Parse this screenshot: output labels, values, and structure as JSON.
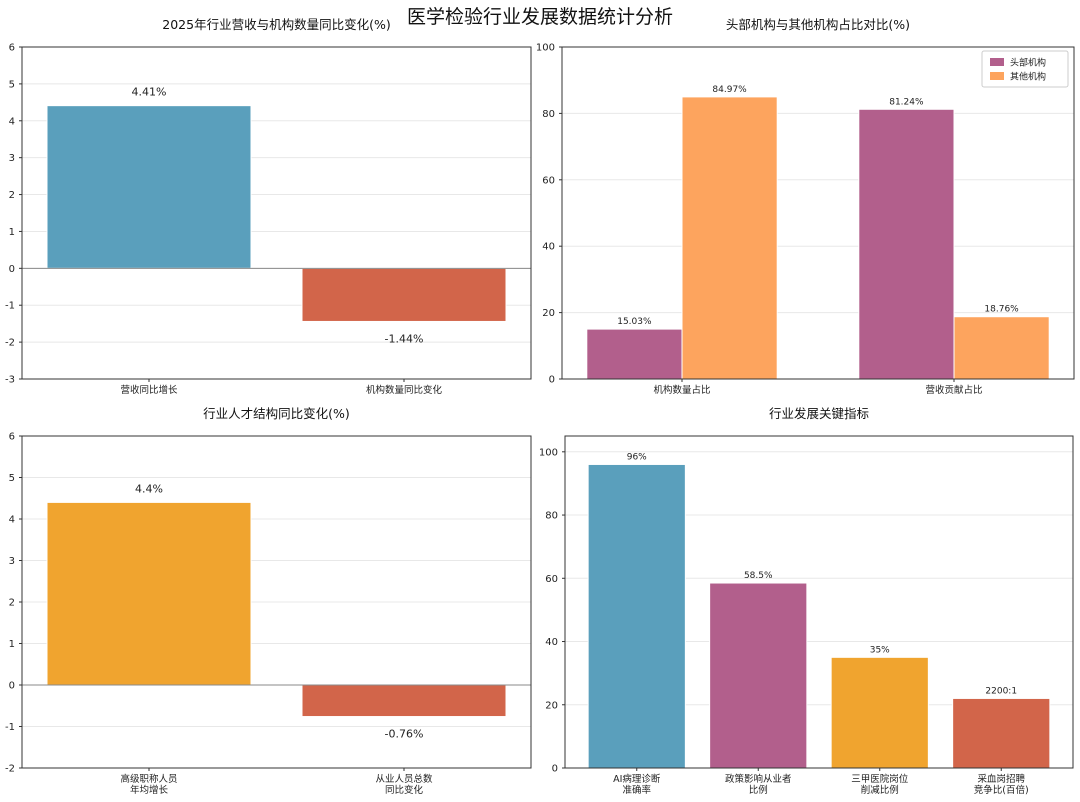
{
  "page_title": "医学检验行业发展数据统计分析",
  "colors": {
    "blue": "#5a9fbc",
    "red": "#d2654a",
    "purple": "#b25f8c",
    "orange": "#fda45e",
    "amber": "#f0a42f"
  },
  "chart_data": [
    {
      "type": "bar",
      "title": "2025年行业营收与机构数量同比变化(%)",
      "categories": [
        [
          "营收同比增长"
        ],
        [
          "机构数量同比变化"
        ]
      ],
      "values": [
        4.41,
        -1.44
      ],
      "data_labels": [
        "4.41%",
        "-1.44%"
      ],
      "bar_colors": [
        "#5a9fbc",
        "#d2654a"
      ],
      "ylim": [
        -3,
        6
      ],
      "yticks": [
        -3,
        -2,
        -1,
        0,
        1,
        2,
        3,
        4,
        5,
        6
      ],
      "zero_line": true,
      "grid": "horizontal"
    },
    {
      "type": "bar",
      "title": "头部机构与其他机构占比对比(%)",
      "categories": [
        [
          "机构数量占比"
        ],
        [
          "营收贡献占比"
        ]
      ],
      "series": [
        {
          "name": "头部机构",
          "values": [
            15.03,
            81.24
          ],
          "data_labels": [
            "15.03%",
            "81.24%"
          ],
          "color": "#b25f8c"
        },
        {
          "name": "其他机构",
          "values": [
            84.97,
            18.76
          ],
          "data_labels": [
            "84.97%",
            "18.76%"
          ],
          "color": "#fda45e"
        }
      ],
      "ylim": [
        0,
        100
      ],
      "yticks": [
        0,
        20,
        40,
        60,
        80,
        100
      ],
      "legend": "top-right",
      "grid": "horizontal"
    },
    {
      "type": "bar",
      "title": "行业人才结构同比变化(%)",
      "categories": [
        [
          "高级职称人员",
          "年均增长"
        ],
        [
          "从业人员总数",
          "同比变化"
        ]
      ],
      "values": [
        4.4,
        -0.76
      ],
      "data_labels": [
        "4.4%",
        "-0.76%"
      ],
      "bar_colors": [
        "#f0a42f",
        "#d2654a"
      ],
      "ylim": [
        -2,
        6
      ],
      "yticks": [
        -2,
        -1,
        0,
        1,
        2,
        3,
        4,
        5,
        6
      ],
      "zero_line": true,
      "grid": "horizontal"
    },
    {
      "type": "bar",
      "title": "行业发展关键指标",
      "categories": [
        [
          "AI病理诊断",
          "准确率"
        ],
        [
          "政策影响从业者",
          "比例"
        ],
        [
          "三甲医院岗位",
          "削减比例"
        ],
        [
          "采血岗招聘",
          "竞争比(百倍)"
        ]
      ],
      "values": [
        96,
        58.5,
        35,
        22
      ],
      "data_labels": [
        "96%",
        "58.5%",
        "35%",
        "2200:1"
      ],
      "bar_colors": [
        "#5a9fbc",
        "#b25f8c",
        "#f0a42f",
        "#d2654a"
      ],
      "ylim": [
        0,
        105
      ],
      "yticks": [
        0,
        20,
        40,
        60,
        80,
        100
      ],
      "grid": "horizontal"
    }
  ]
}
